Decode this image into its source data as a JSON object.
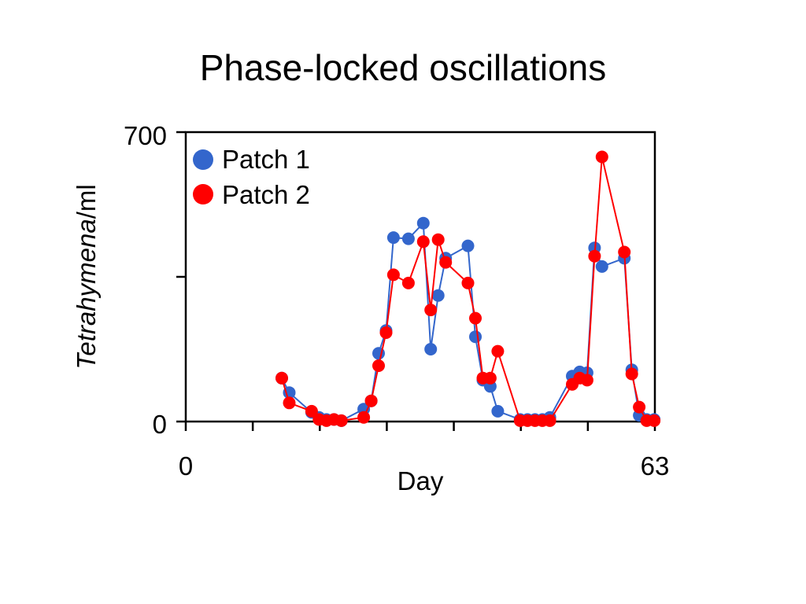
{
  "chart_data": {
    "type": "line",
    "title": "Phase-locked oscillations",
    "xlabel": "Day",
    "ylabel_italic": "Tetrahymena",
    "ylabel_suffix": "/ml",
    "xlim": [
      0,
      63
    ],
    "ylim": [
      0,
      700
    ],
    "x_tick_labels": [
      "0",
      "63"
    ],
    "y_tick_labels": [
      "0",
      "700"
    ],
    "legend_position": "top-left",
    "series": [
      {
        "name": "Patch 1",
        "color": "#3366cc",
        "x": [
          12.9,
          13.9,
          16.9,
          17.9,
          18.9,
          19.9,
          20.9,
          23.9,
          24.9,
          25.9,
          26.9,
          27.9,
          29.9,
          31.9,
          32.9,
          33.9,
          34.9,
          37.9,
          38.9,
          39.9,
          40.9,
          41.9,
          44.9,
          45.9,
          46.9,
          47.9,
          48.9,
          51.9,
          52.9,
          53.9,
          54.9,
          55.9,
          58.9,
          59.9,
          60.9,
          61.9,
          62.9
        ],
        "y": [
          105,
          70,
          22,
          10,
          5,
          5,
          2,
          30,
          50,
          165,
          220,
          445,
          442,
          480,
          175,
          305,
          395,
          425,
          205,
          100,
          85,
          25,
          5,
          5,
          5,
          5,
          10,
          110,
          120,
          118,
          420,
          375,
          395,
          125,
          15,
          5,
          5
        ]
      },
      {
        "name": "Patch 2",
        "color": "#ff0000",
        "x": [
          12.9,
          13.9,
          16.9,
          17.9,
          18.9,
          19.9,
          20.9,
          23.9,
          24.9,
          25.9,
          26.9,
          27.9,
          29.9,
          31.9,
          32.9,
          33.9,
          34.9,
          37.9,
          38.9,
          39.9,
          40.9,
          41.9,
          44.9,
          45.9,
          46.9,
          47.9,
          48.9,
          51.9,
          52.9,
          53.9,
          54.9,
          55.9,
          58.9,
          59.9,
          60.9,
          61.9,
          62.9
        ],
        "y": [
          105,
          45,
          25,
          5,
          2,
          5,
          2,
          10,
          50,
          135,
          215,
          355,
          335,
          435,
          270,
          440,
          385,
          335,
          250,
          105,
          105,
          170,
          2,
          2,
          2,
          2,
          2,
          90,
          105,
          100,
          400,
          640,
          410,
          115,
          35,
          2,
          2
        ]
      }
    ]
  }
}
